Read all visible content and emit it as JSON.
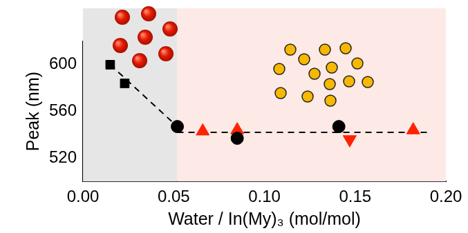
{
  "chart_data": {
    "type": "scatter",
    "x_label": "Water / In(My)₃ (mol/mol)",
    "y_label": "Peak (nm)",
    "xlim": [
      0,
      0.2
    ],
    "xticks": [
      {
        "value": 0,
        "label": "0.00"
      },
      {
        "value": 0.05,
        "label": "0.05"
      },
      {
        "value": 0.1,
        "label": "0.10"
      },
      {
        "value": 0.15,
        "label": "0.15"
      },
      {
        "value": 0.2,
        "label": "0.20"
      }
    ],
    "ylim": [
      500,
      620
    ],
    "yticks": [
      520,
      560,
      600
    ],
    "grid": false,
    "regions": [
      {
        "from": 0,
        "to": 0.052,
        "color": "#e6e6e6"
      },
      {
        "from": 0.052,
        "to": 0.2,
        "color": "#fde9e6"
      }
    ],
    "series": [
      {
        "type": "line",
        "line_style": "dashed",
        "color": "#000000",
        "x": [
          0.015,
          0.052
        ],
        "values": [
          600,
          547
        ]
      },
      {
        "type": "line",
        "line_style": "dashed",
        "color": "#000000",
        "x": [
          0.052,
          0.192
        ],
        "values": [
          542,
          542
        ]
      },
      {
        "type": "scatter",
        "marker": "square",
        "color": "#000000",
        "x": [
          0.015,
          0.023
        ],
        "values": [
          600,
          584
        ]
      },
      {
        "type": "scatter",
        "marker": "circle",
        "color": "#000000",
        "x": [
          0.052,
          0.085,
          0.141
        ],
        "values": [
          547,
          537,
          547
        ]
      },
      {
        "type": "scatter",
        "marker": "triangle-up",
        "color": "#ff2200",
        "x": [
          0.066,
          0.085,
          0.182
        ],
        "values": [
          543,
          544,
          544
        ]
      },
      {
        "type": "scatter",
        "marker": "triangle-down",
        "color": "#ff2200",
        "x": [
          0.147
        ],
        "values": [
          536
        ]
      }
    ]
  }
}
